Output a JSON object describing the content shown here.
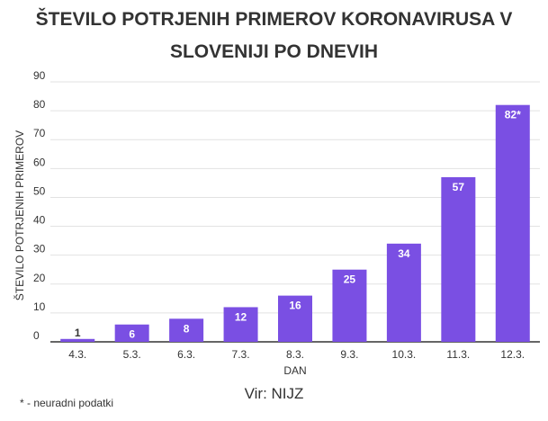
{
  "title_line1": "ŠTEVILO POTRJENIH PRIMEROV KORONAVIRUSA V",
  "title_line2": "SLOVENIJI PO DNEVIH",
  "footnote": "* - neuradni podatki",
  "source": "Vir: NIJZ",
  "colors": {
    "bar": "#7a4fe3",
    "grid": "#e2e2e2",
    "axis": "#333333"
  },
  "chart_data": {
    "type": "bar",
    "title": "ŠTEVILO POTRJENIH PRIMEROV KORONAVIRUSA V SLOVENIJI PO DNEVIH",
    "xlabel": "DAN",
    "ylabel": "ŠTEVILO POTRJENIH PRIMEROV",
    "categories": [
      "4.3.",
      "5.3.",
      "6.3.",
      "7.3.",
      "8.3.",
      "9.3.",
      "10.3.",
      "11.3.",
      "12.3."
    ],
    "values": [
      1,
      6,
      8,
      12,
      16,
      25,
      34,
      57,
      82
    ],
    "data_labels": [
      "1",
      "6",
      "8",
      "12",
      "16",
      "25",
      "34",
      "57",
      "82*"
    ],
    "ylim": [
      0,
      90
    ],
    "yticks": [
      0,
      10,
      20,
      30,
      40,
      50,
      60,
      70,
      80,
      90
    ],
    "grid": true,
    "legend": "none"
  }
}
